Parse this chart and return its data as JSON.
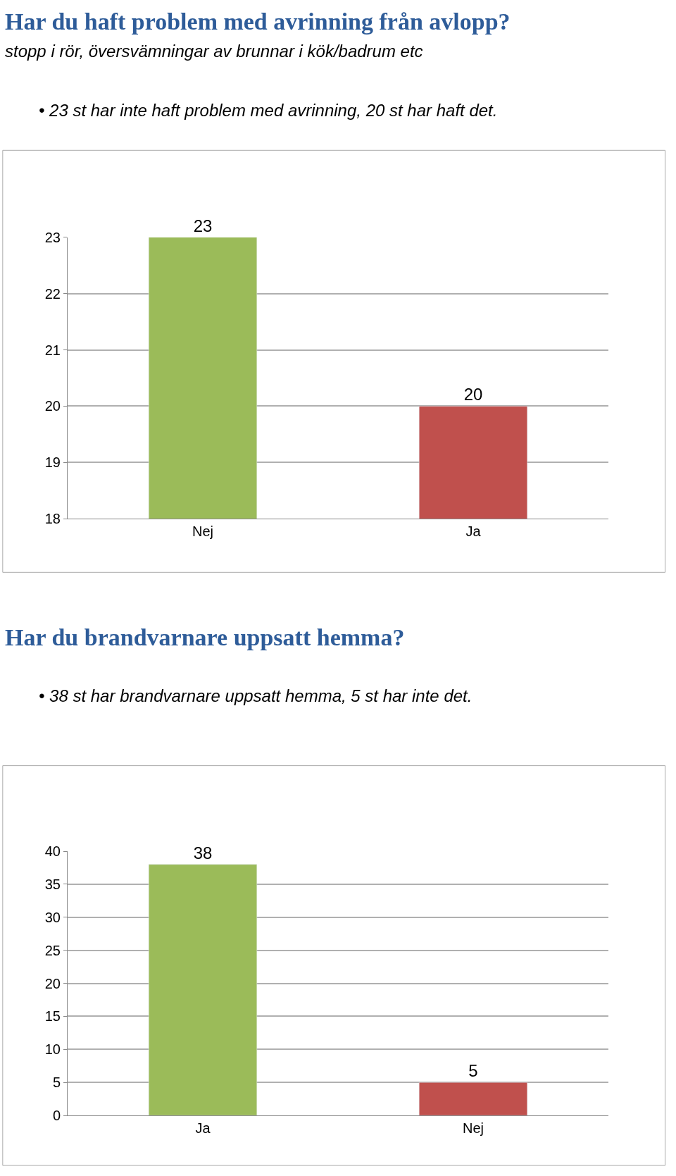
{
  "chart_data": [
    {
      "type": "bar",
      "title": "Har du haft problem med avrinning från avlopp?",
      "subtitle": "stopp i rör, översvämningar av brunnar i kök/badrum etc",
      "annotations": [
        "• 23 st har inte haft problem med avrinning, 20 st har haft det."
      ],
      "categories": [
        "Nej",
        "Ja"
      ],
      "values": [
        23,
        20
      ],
      "colors": [
        "#9bbb59",
        "#c0504d"
      ],
      "ylim": [
        18,
        23
      ],
      "yticks": [
        18,
        19,
        20,
        21,
        22,
        23
      ],
      "grid": "y",
      "data_labels": true
    },
    {
      "type": "bar",
      "title": "Har du brandvarnare uppsatt hemma?",
      "annotations": [
        "• 38 st har brandvarnare uppsatt hemma, 5 st har inte det."
      ],
      "categories": [
        "Ja",
        "Nej"
      ],
      "values": [
        38,
        5
      ],
      "colors": [
        "#9bbb59",
        "#c0504d"
      ],
      "ylim": [
        0,
        40
      ],
      "yticks": [
        0,
        5,
        10,
        15,
        20,
        25,
        30,
        35,
        40
      ],
      "grid": "y",
      "data_labels": true
    }
  ]
}
